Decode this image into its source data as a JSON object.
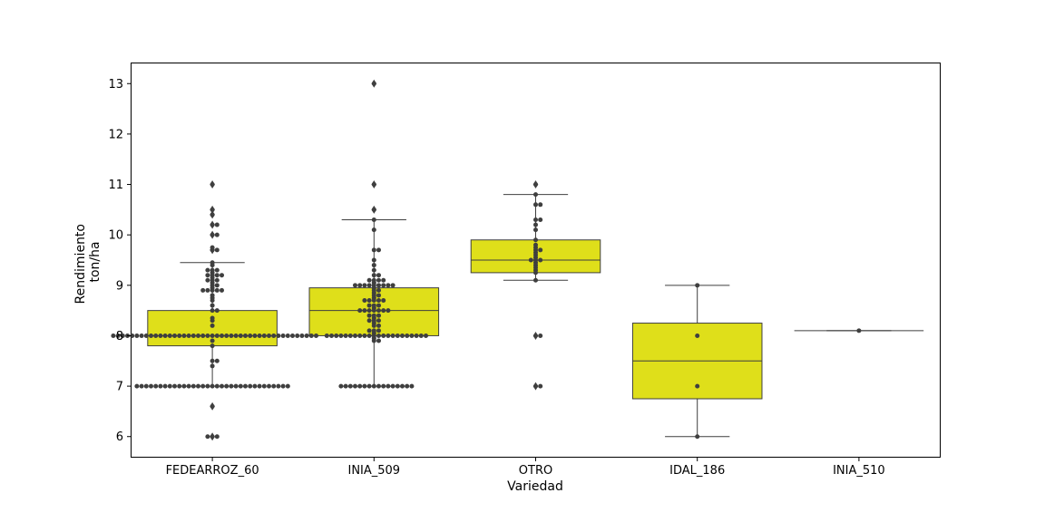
{
  "chart_data": {
    "type": "box",
    "xlabel": "Variedad",
    "ylabel_lines": [
      "Rendimiento",
      "ton/ha"
    ],
    "ylim": [
      5.6,
      13.4
    ],
    "yticks": [
      6,
      7,
      8,
      9,
      10,
      11,
      12,
      13
    ],
    "ytick_labels": [
      "6",
      "7",
      "8",
      "9",
      "10",
      "11",
      "12",
      "13"
    ],
    "grid": false,
    "legend": "none",
    "colors": {
      "box_fill": "#dfdf1a",
      "box_edge": "#3f3f3f",
      "point": "#3f3f3f"
    },
    "categories": [
      "FEDEARROZ_60",
      "INIA_509",
      "OTRO",
      "IDAL_186",
      "INIA_510"
    ],
    "boxes": [
      {
        "q1": 7.8,
        "median": 8.0,
        "q3": 8.5,
        "whisker_low": 7.0,
        "whisker_high": 9.45,
        "outliers": [
          6.0,
          6.6,
          9.7,
          10.0,
          10.2,
          10.4,
          10.5,
          11.0
        ]
      },
      {
        "q1": 8.0,
        "median": 8.5,
        "q3": 8.95,
        "whisker_low": 7.0,
        "whisker_high": 10.3,
        "outliers": [
          10.5,
          11.0,
          13.0
        ]
      },
      {
        "q1": 9.25,
        "median": 9.5,
        "q3": 9.9,
        "whisker_low": 9.1,
        "whisker_high": 10.8,
        "outliers": [
          7.0,
          8.0,
          11.0
        ]
      },
      {
        "q1": 6.75,
        "median": 7.5,
        "q3": 8.25,
        "whisker_low": 6.0,
        "whisker_high": 9.0,
        "outliers": []
      },
      {
        "q1": 8.1,
        "median": 8.1,
        "q3": 8.1,
        "whisker_low": 8.1,
        "whisker_high": 8.1,
        "outliers": []
      }
    ],
    "swarm_points": [
      [
        6.0,
        6.0,
        6.0,
        6.6,
        7.0,
        7.0,
        7.0,
        7.0,
        7.0,
        7.0,
        7.0,
        7.0,
        7.0,
        7.0,
        7.0,
        7.0,
        7.0,
        7.0,
        7.0,
        7.0,
        7.0,
        7.0,
        7.0,
        7.0,
        7.0,
        7.0,
        7.0,
        7.0,
        7.0,
        7.0,
        7.0,
        7.0,
        7.0,
        7.0,
        7.0,
        7.0,
        7.0,
        7.4,
        7.5,
        7.5,
        7.8,
        7.9,
        8.0,
        8.0,
        8.0,
        8.0,
        8.0,
        8.0,
        8.0,
        8.0,
        8.0,
        8.0,
        8.0,
        8.0,
        8.0,
        8.0,
        8.0,
        8.0,
        8.0,
        8.0,
        8.0,
        8.0,
        8.0,
        8.0,
        8.0,
        8.0,
        8.0,
        8.0,
        8.0,
        8.0,
        8.0,
        8.0,
        8.0,
        8.0,
        8.0,
        8.0,
        8.0,
        8.0,
        8.0,
        8.0,
        8.0,
        8.0,
        8.0,
        8.0,
        8.0,
        8.0,
        8.2,
        8.3,
        8.35,
        8.5,
        8.5,
        8.6,
        8.7,
        8.75,
        8.8,
        8.9,
        8.9,
        8.9,
        8.9,
        8.9,
        8.95,
        9.0,
        9.0,
        9.05,
        9.1,
        9.1,
        9.1,
        9.15,
        9.2,
        9.2,
        9.2,
        9.2,
        9.25,
        9.3,
        9.3,
        9.3,
        9.4,
        9.45,
        9.7,
        9.7,
        9.75,
        10.0,
        10.0,
        10.2,
        10.2,
        10.4,
        10.5,
        11.0
      ],
      [
        7.0,
        7.0,
        7.0,
        7.0,
        7.0,
        7.0,
        7.0,
        7.0,
        7.0,
        7.0,
        7.0,
        7.0,
        7.0,
        7.0,
        7.0,
        7.0,
        7.9,
        7.9,
        7.95,
        8.0,
        8.0,
        8.0,
        8.0,
        8.0,
        8.0,
        8.0,
        8.0,
        8.0,
        8.0,
        8.0,
        8.0,
        8.0,
        8.0,
        8.0,
        8.0,
        8.0,
        8.0,
        8.0,
        8.0,
        8.0,
        8.0,
        8.05,
        8.1,
        8.1,
        8.1,
        8.2,
        8.2,
        8.25,
        8.3,
        8.3,
        8.3,
        8.35,
        8.4,
        8.4,
        8.4,
        8.5,
        8.5,
        8.5,
        8.5,
        8.5,
        8.5,
        8.5,
        8.55,
        8.6,
        8.6,
        8.6,
        8.7,
        8.7,
        8.7,
        8.7,
        8.7,
        8.75,
        8.8,
        8.8,
        8.85,
        8.9,
        8.9,
        8.95,
        9.0,
        9.0,
        9.0,
        9.0,
        9.0,
        9.0,
        9.0,
        9.0,
        9.0,
        9.05,
        9.1,
        9.1,
        9.1,
        9.1,
        9.2,
        9.2,
        9.3,
        9.4,
        9.5,
        9.7,
        9.7,
        10.1,
        10.3,
        10.5,
        11.0,
        13.0
      ],
      [
        7.0,
        7.0,
        8.0,
        8.0,
        9.1,
        9.25,
        9.3,
        9.35,
        9.4,
        9.45,
        9.5,
        9.5,
        9.5,
        9.55,
        9.6,
        9.65,
        9.7,
        9.7,
        9.75,
        9.8,
        9.9,
        10.1,
        10.2,
        10.3,
        10.3,
        10.6,
        10.6,
        10.8,
        11.0
      ],
      [
        6.0,
        7.0,
        8.0,
        9.0
      ],
      [
        8.1
      ]
    ]
  }
}
